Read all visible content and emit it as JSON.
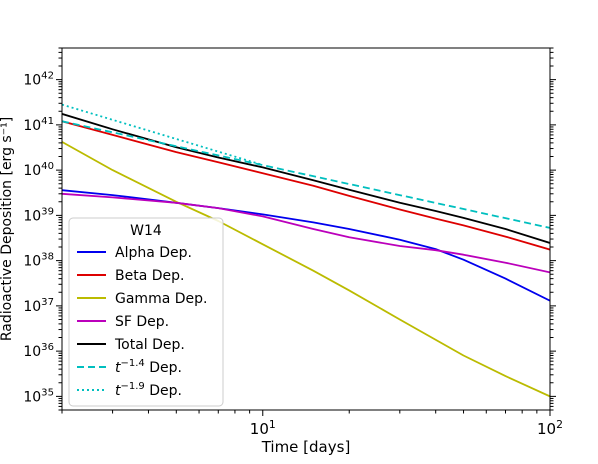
{
  "chart_data": {
    "type": "line",
    "xlabel": "Time [days]",
    "ylabel": "Radioactive Deposition [erg s⁻¹]",
    "xscale": "log",
    "yscale": "log",
    "xlim": [
      2,
      100
    ],
    "ylim": [
      5e+34,
      5e+42
    ],
    "grid": false,
    "x_ticks": [
      {
        "value": 10,
        "base": "10",
        "exp": "1"
      },
      {
        "value": 100,
        "base": "10",
        "exp": "2"
      }
    ],
    "y_ticks": [
      {
        "value": 1e+35,
        "base": "10",
        "exp": "35"
      },
      {
        "value": 1e+36,
        "base": "10",
        "exp": "36"
      },
      {
        "value": 1e+37,
        "base": "10",
        "exp": "37"
      },
      {
        "value": 1e+38,
        "base": "10",
        "exp": "38"
      },
      {
        "value": 1e+39,
        "base": "10",
        "exp": "39"
      },
      {
        "value": 1e+40,
        "base": "10",
        "exp": "40"
      },
      {
        "value": 1e+41,
        "base": "10",
        "exp": "41"
      },
      {
        "value": 1e+42,
        "base": "10",
        "exp": "42"
      }
    ],
    "legend": {
      "title": "W14",
      "location": "lower-left",
      "entries": [
        {
          "label": "Alpha Dep.",
          "color": "#0000ee",
          "style": "solid"
        },
        {
          "label": "Beta Dep.",
          "color": "#dd0000",
          "style": "solid"
        },
        {
          "label": "Gamma Dep.",
          "color": "#bbbb00",
          "style": "solid"
        },
        {
          "label": "SF Dep.",
          "color": "#bb00bb",
          "style": "solid"
        },
        {
          "label": "Total Dep.",
          "color": "#000000",
          "style": "solid"
        },
        {
          "label_prefix": "t",
          "label_exp": "−1.4",
          "label_suffix": " Dep.",
          "color": "#00bfbf",
          "style": "dashed"
        },
        {
          "label_prefix": "t",
          "label_exp": "−1.9",
          "label_suffix": " Dep.",
          "color": "#00bfbf",
          "style": "dotted"
        }
      ]
    },
    "series": [
      {
        "name": "Alpha Dep.",
        "color": "#0000ee",
        "style": "solid",
        "x": [
          2,
          3,
          5,
          7,
          10,
          15,
          20,
          30,
          40,
          50,
          70,
          100
        ],
        "y": [
          3.6e+39,
          2.8e+39,
          1.9e+39,
          1.45e+39,
          1.05e+39,
          7e+38,
          5e+38,
          2.9e+38,
          1.8e+38,
          1.05e+38,
          4e+37,
          1.3e+37
        ]
      },
      {
        "name": "Beta Dep.",
        "color": "#dd0000",
        "style": "solid",
        "x": [
          2,
          3,
          5,
          7,
          10,
          15,
          20,
          30,
          40,
          50,
          70,
          100
        ],
        "y": [
          1.2e+41,
          6e+40,
          2.5e+40,
          1.5e+40,
          8.5e+39,
          4.5e+39,
          2.7e+39,
          1.35e+39,
          8.5e+38,
          6e+38,
          3.4e+38,
          1.75e+38
        ]
      },
      {
        "name": "Gamma Dep.",
        "color": "#bbbb00",
        "style": "solid",
        "x": [
          2,
          3,
          5,
          7,
          10,
          15,
          20,
          30,
          50,
          70,
          100
        ],
        "y": [
          4.2e+40,
          1e+40,
          2e+39,
          7.5e+38,
          2.3e+38,
          6e+37,
          2.2e+37,
          5e+36,
          8e+35,
          2.8e+35,
          1e+35
        ]
      },
      {
        "name": "SF Dep.",
        "color": "#bb00bb",
        "style": "solid",
        "x": [
          2,
          3,
          5,
          7,
          10,
          15,
          20,
          30,
          40,
          50,
          70,
          100
        ],
        "y": [
          3e+39,
          2.5e+39,
          1.9e+39,
          1.45e+39,
          9.5e+38,
          5e+38,
          3.3e+38,
          2.1e+38,
          1.7e+38,
          1.35e+38,
          9e+37,
          5.5e+37
        ]
      },
      {
        "name": "Total Dep.",
        "color": "#000000",
        "style": "solid",
        "x": [
          2,
          3,
          5,
          7,
          10,
          15,
          20,
          30,
          40,
          50,
          70,
          100
        ],
        "y": [
          1.75e+41,
          8e+40,
          3.2e+40,
          1.9e+40,
          1.15e+40,
          6e+39,
          3.7e+39,
          1.9e+39,
          1.25e+39,
          8.8e+38,
          5e+38,
          2.45e+38
        ]
      },
      {
        "name": "t⁻¹·⁴ Dep.",
        "color": "#00bfbf",
        "style": "dashed",
        "x": [
          2,
          100
        ],
        "y": [
          1.2e+41,
          5.3e+38
        ]
      },
      {
        "name": "t⁻¹·⁹ Dep.",
        "color": "#00bfbf",
        "style": "dotted",
        "x": [
          2,
          10
        ],
        "y": [
          2.8e+41,
          1.3e+40
        ]
      }
    ]
  }
}
